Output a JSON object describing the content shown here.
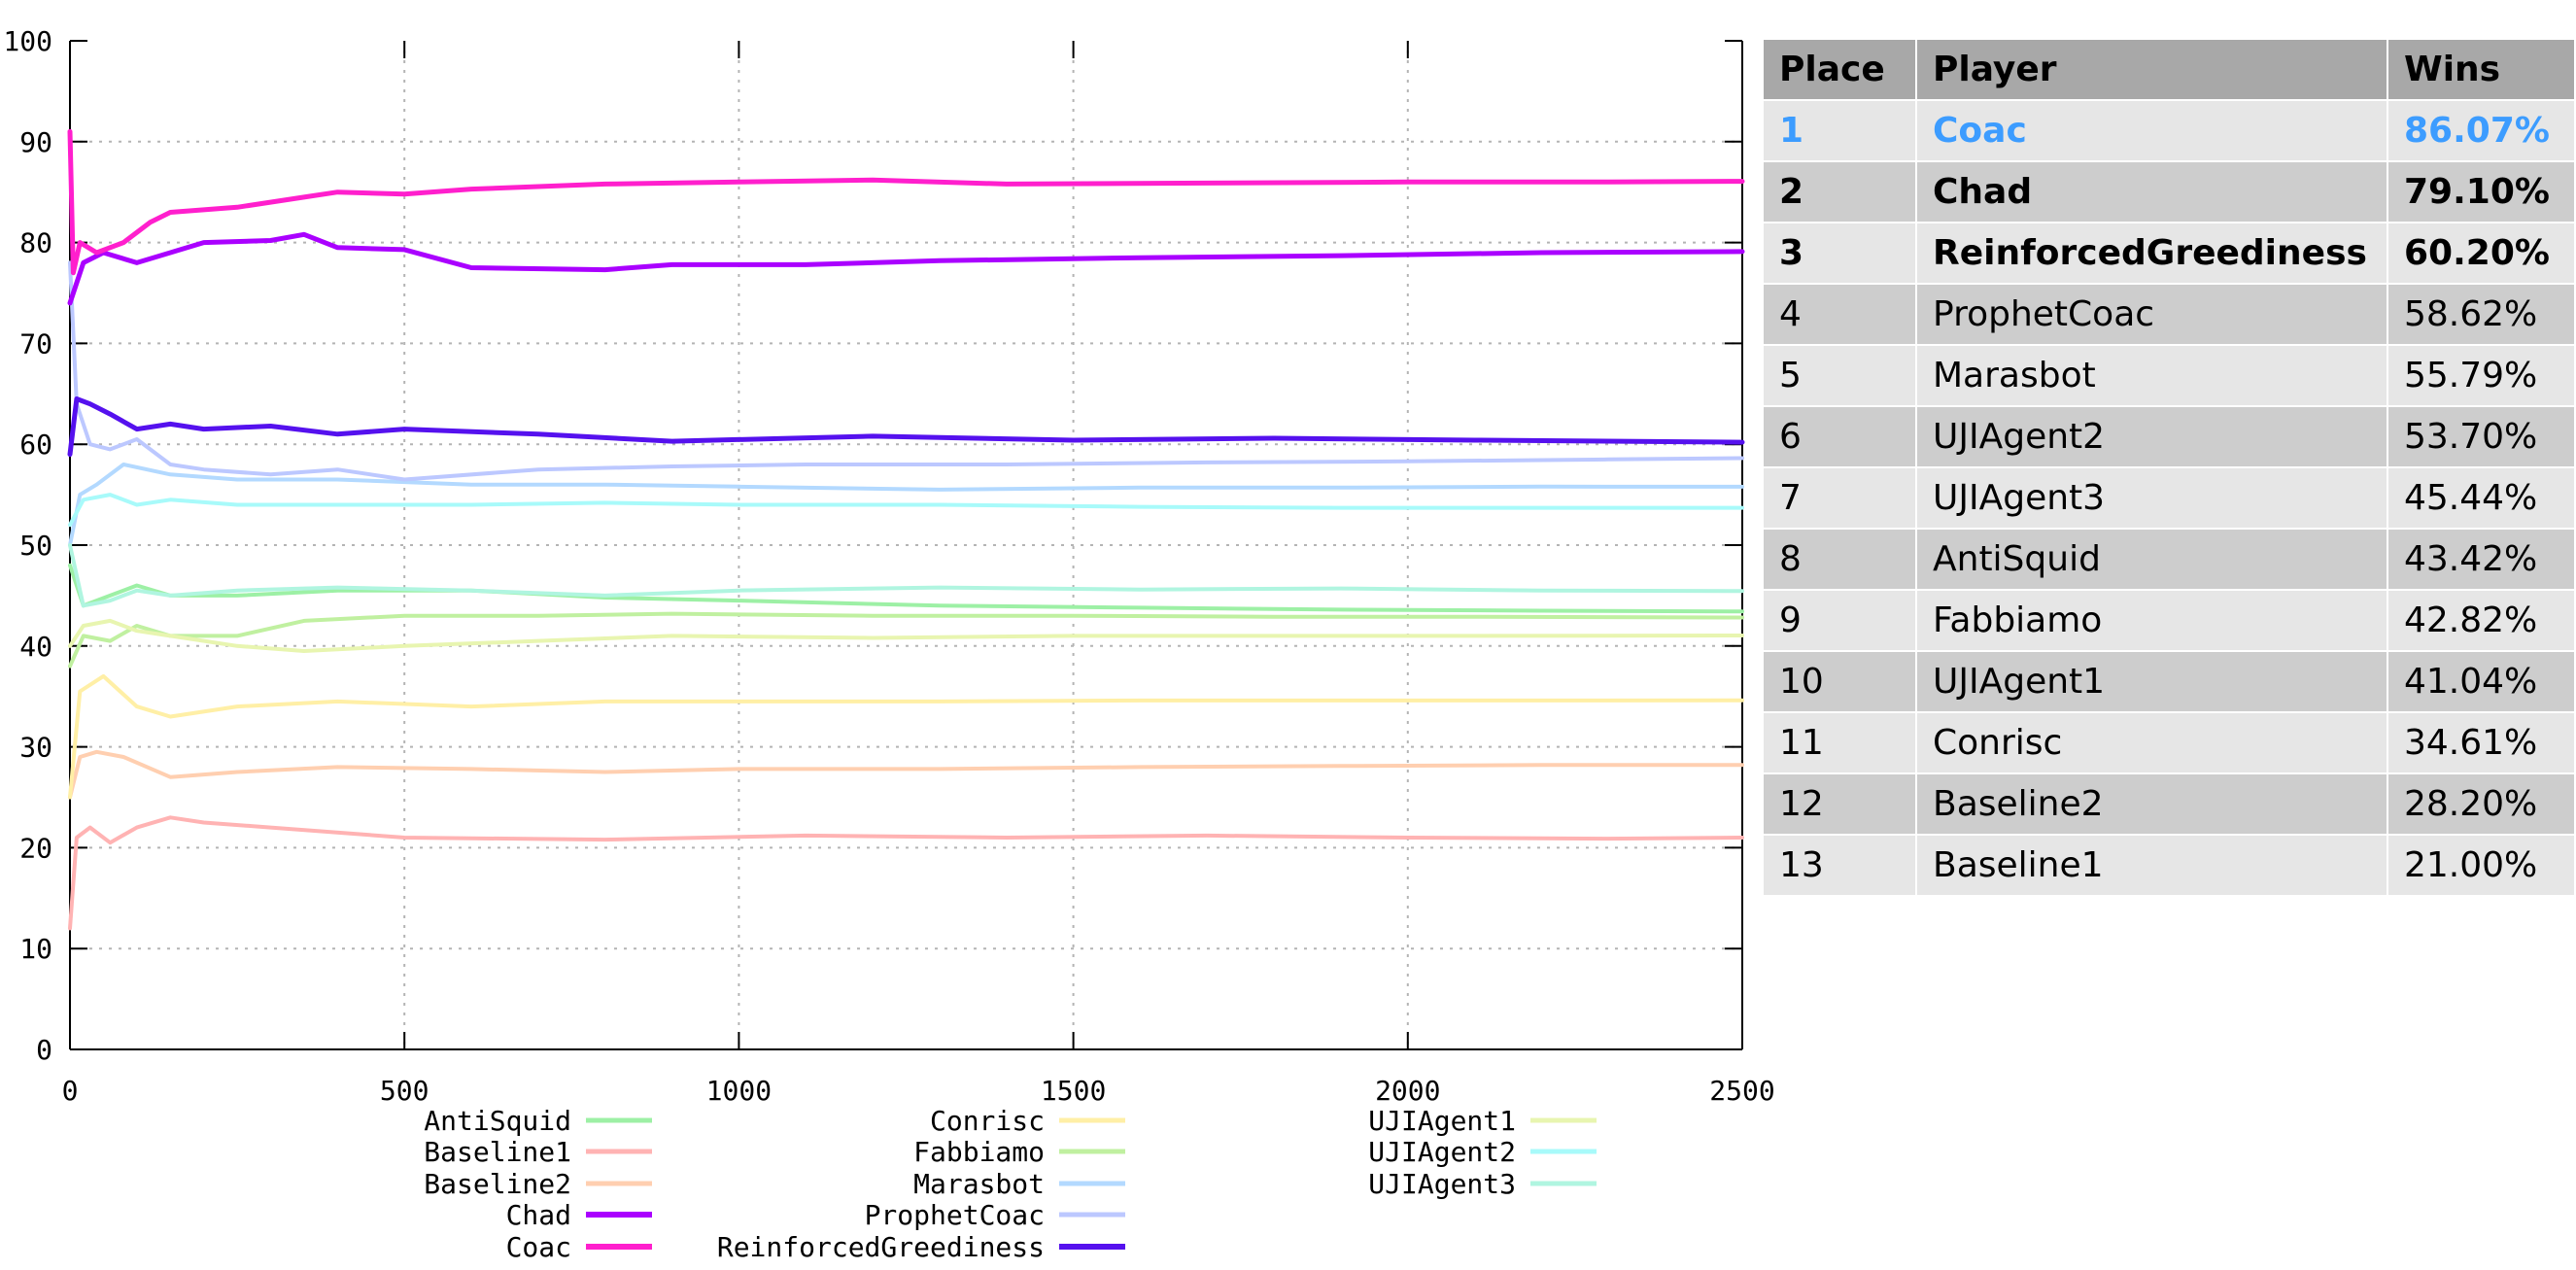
{
  "chart_data": {
    "type": "line",
    "xlim": [
      0,
      2500
    ],
    "ylim": [
      0,
      100
    ],
    "x_ticks": [
      0,
      500,
      1000,
      1500,
      2000,
      2500
    ],
    "y_ticks": [
      0,
      10,
      20,
      30,
      40,
      50,
      60,
      70,
      80,
      90,
      100
    ],
    "grid": true,
    "legend_position": "bottom",
    "series": [
      {
        "name": "AntiSquid",
        "color": "#9df0a5",
        "x": [
          0,
          20,
          60,
          100,
          150,
          250,
          400,
          600,
          800,
          1000,
          1300,
          1600,
          1900,
          2200,
          2500
        ],
        "values": [
          48,
          44,
          45,
          46,
          45,
          45,
          45.5,
          45.5,
          44.8,
          44.5,
          44,
          43.8,
          43.6,
          43.5,
          43.42
        ]
      },
      {
        "name": "Baseline1",
        "color": "#ffb3b3",
        "x": [
          0,
          10,
          30,
          60,
          100,
          150,
          200,
          300,
          500,
          800,
          1100,
          1400,
          1700,
          2000,
          2300,
          2500
        ],
        "values": [
          12,
          21,
          22,
          20.5,
          22,
          23,
          22.5,
          22,
          21,
          20.8,
          21.2,
          21,
          21.2,
          21,
          20.9,
          21.0
        ]
      },
      {
        "name": "Baseline2",
        "color": "#ffcfb0",
        "x": [
          0,
          15,
          40,
          80,
          150,
          250,
          400,
          600,
          800,
          1000,
          1300,
          1600,
          1900,
          2200,
          2500
        ],
        "values": [
          25,
          29,
          29.5,
          29,
          27,
          27.5,
          28,
          27.8,
          27.5,
          27.8,
          27.8,
          28,
          28.1,
          28.2,
          28.2
        ]
      },
      {
        "name": "Chad",
        "color": "#aa00ff",
        "x": [
          0,
          20,
          50,
          100,
          150,
          200,
          300,
          350,
          400,
          500,
          600,
          800,
          900,
          1100,
          1300,
          1600,
          1900,
          2200,
          2500
        ],
        "values": [
          74,
          78,
          79,
          78,
          79,
          80,
          80.2,
          80.8,
          79.5,
          79.3,
          77.5,
          77.3,
          77.8,
          77.8,
          78.2,
          78.5,
          78.7,
          79,
          79.1
        ]
      },
      {
        "name": "Coac",
        "color": "#ff1fcd",
        "x": [
          0,
          5,
          15,
          40,
          80,
          120,
          150,
          250,
          350,
          400,
          500,
          600,
          800,
          1000,
          1200,
          1400,
          1700,
          2000,
          2300,
          2500
        ],
        "values": [
          91,
          77,
          80,
          79,
          80,
          82,
          83,
          83.5,
          84.5,
          85,
          84.8,
          85.3,
          85.8,
          86,
          86.2,
          85.8,
          85.9,
          86,
          86,
          86.07
        ]
      },
      {
        "name": "Conrisc",
        "color": "#ffefa6",
        "x": [
          0,
          15,
          50,
          100,
          150,
          250,
          400,
          600,
          800,
          1000,
          1300,
          1600,
          1900,
          2200,
          2500
        ],
        "values": [
          25,
          35.5,
          37,
          34,
          33,
          34,
          34.5,
          34,
          34.5,
          34.5,
          34.5,
          34.6,
          34.6,
          34.6,
          34.61
        ]
      },
      {
        "name": "Fabbiamo",
        "color": "#c0f0a0",
        "x": [
          0,
          20,
          60,
          100,
          150,
          250,
          350,
          500,
          700,
          900,
          1200,
          1500,
          1800,
          2100,
          2500
        ],
        "values": [
          38,
          41,
          40.5,
          42,
          41,
          41,
          42.5,
          43,
          43,
          43.2,
          43,
          43,
          42.9,
          42.9,
          42.82
        ]
      },
      {
        "name": "Marasbot",
        "color": "#b3d9ff",
        "x": [
          0,
          15,
          40,
          80,
          150,
          250,
          400,
          600,
          800,
          1000,
          1300,
          1600,
          1900,
          2200,
          2500
        ],
        "values": [
          50,
          55,
          56,
          58,
          57,
          56.5,
          56.5,
          56,
          56,
          55.8,
          55.5,
          55.7,
          55.7,
          55.8,
          55.79
        ]
      },
      {
        "name": "ProphetCoac",
        "color": "#bcc8ff",
        "x": [
          0,
          10,
          30,
          60,
          100,
          150,
          200,
          300,
          400,
          500,
          700,
          900,
          1100,
          1400,
          1700,
          2000,
          2300,
          2500
        ],
        "values": [
          78,
          64,
          60,
          59.5,
          60.5,
          58,
          57.5,
          57,
          57.5,
          56.5,
          57.5,
          57.8,
          58,
          58,
          58.2,
          58.3,
          58.5,
          58.62
        ]
      },
      {
        "name": "ReinforcedGreediness",
        "color": "#5511ee",
        "x": [
          0,
          10,
          30,
          60,
          100,
          150,
          200,
          300,
          400,
          500,
          700,
          900,
          1200,
          1500,
          1800,
          2100,
          2500
        ],
        "values": [
          59,
          64.5,
          64,
          63,
          61.5,
          62,
          61.5,
          61.8,
          61,
          61.5,
          61,
          60.3,
          60.8,
          60.4,
          60.6,
          60.4,
          60.2
        ]
      },
      {
        "name": "UJIAgent1",
        "color": "#e8f5b0",
        "x": [
          0,
          20,
          60,
          100,
          150,
          250,
          350,
          500,
          700,
          900,
          1200,
          1500,
          1800,
          2100,
          2500
        ],
        "values": [
          40,
          42,
          42.5,
          41.5,
          41,
          40,
          39.5,
          40,
          40.5,
          41,
          40.8,
          41,
          41,
          41,
          41.04
        ]
      },
      {
        "name": "UJIAgent2",
        "color": "#a8fafa",
        "x": [
          0,
          20,
          60,
          100,
          150,
          250,
          400,
          600,
          800,
          1000,
          1300,
          1600,
          1900,
          2200,
          2500
        ],
        "values": [
          52,
          54.5,
          55,
          54,
          54.5,
          54,
          54,
          54,
          54.2,
          54,
          54,
          53.8,
          53.7,
          53.7,
          53.7
        ]
      },
      {
        "name": "UJIAgent3",
        "color": "#b0f5e0",
        "x": [
          0,
          20,
          60,
          100,
          150,
          250,
          400,
          600,
          800,
          1000,
          1300,
          1600,
          1900,
          2200,
          2500
        ],
        "values": [
          50,
          44,
          44.5,
          45.5,
          45,
          45.5,
          45.8,
          45.5,
          45,
          45.5,
          45.8,
          45.6,
          45.7,
          45.5,
          45.44
        ]
      }
    ],
    "legend_columns": [
      [
        "AntiSquid",
        "Baseline1",
        "Baseline2",
        "Chad",
        "Coac"
      ],
      [
        "Conrisc",
        "Fabbiamo",
        "Marasbot",
        "ProphetCoac",
        "ReinforcedGreediness"
      ],
      [
        "UJIAgent1",
        "UJIAgent2",
        "UJIAgent3"
      ]
    ],
    "emphasized_series": [
      "Chad",
      "Coac",
      "ReinforcedGreediness"
    ]
  },
  "table": {
    "headers": [
      "Place",
      "Player",
      "Wins"
    ],
    "rows": [
      [
        "1",
        "Coac",
        "86.07%"
      ],
      [
        "2",
        "Chad",
        "79.10%"
      ],
      [
        "3",
        "ReinforcedGreediness",
        "60.20%"
      ],
      [
        "4",
        "ProphetCoac",
        "58.62%"
      ],
      [
        "5",
        "Marasbot",
        "55.79%"
      ],
      [
        "6",
        "UJIAgent2",
        "53.70%"
      ],
      [
        "7",
        "UJIAgent3",
        "45.44%"
      ],
      [
        "8",
        "AntiSquid",
        "43.42%"
      ],
      [
        "9",
        "Fabbiamo",
        "42.82%"
      ],
      [
        "10",
        "UJIAgent1",
        "41.04%"
      ],
      [
        "11",
        "Conrisc",
        "34.61%"
      ],
      [
        "12",
        "Baseline2",
        "28.20%"
      ],
      [
        "13",
        "Baseline1",
        "21.00%"
      ]
    ]
  }
}
